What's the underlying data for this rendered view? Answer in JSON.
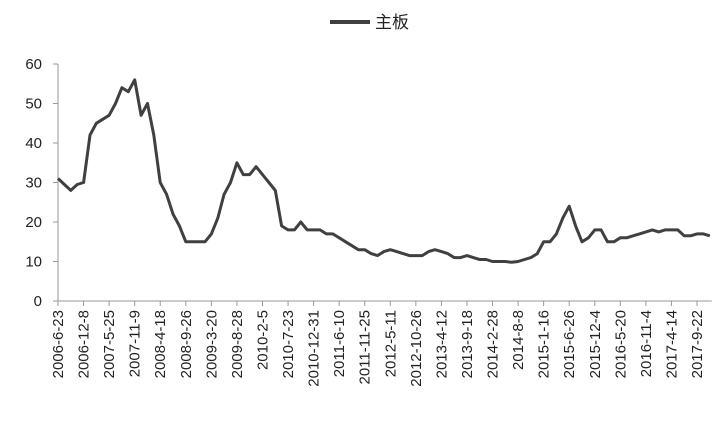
{
  "chart_data": {
    "type": "line",
    "categories": [
      "2006-6-23",
      null,
      null,
      null,
      "2006-12-8",
      null,
      null,
      null,
      "2007-5-25",
      null,
      null,
      null,
      "2007-11-9",
      null,
      null,
      null,
      "2008-4-18",
      null,
      null,
      null,
      "2008-9-26",
      null,
      null,
      null,
      "2009-3-20",
      null,
      null,
      null,
      "2009-8-28",
      null,
      null,
      null,
      "2010-2-5",
      null,
      null,
      null,
      "2010-7-23",
      null,
      null,
      null,
      "2010-12-31",
      null,
      null,
      null,
      "2011-6-10",
      null,
      null,
      null,
      "2011-11-25",
      null,
      null,
      null,
      "2012-5-11",
      null,
      null,
      null,
      "2012-10-26",
      null,
      null,
      null,
      "2013-4-12",
      null,
      null,
      null,
      "2013-9-18",
      null,
      null,
      null,
      "2014-2-28",
      null,
      null,
      null,
      "2014-8-8",
      null,
      null,
      null,
      "2015-1-16",
      null,
      null,
      null,
      "2015-6-26",
      null,
      null,
      null,
      "2015-12-4",
      null,
      null,
      null,
      "2016-5-20",
      null,
      null,
      null,
      "2016-11-4",
      null,
      null,
      null,
      "2017-4-14",
      null,
      null,
      null,
      "2017-9-22",
      null,
      null
    ],
    "series": [
      {
        "name": "主板",
        "color": "#404040",
        "values": [
          31,
          29.5,
          28,
          29.5,
          30,
          42,
          45,
          46,
          47,
          50,
          54,
          53,
          56,
          47,
          50,
          42,
          30,
          27,
          22,
          19,
          15,
          15,
          15,
          15,
          17,
          21,
          27,
          30,
          35,
          32,
          32,
          34,
          32,
          30,
          28,
          19,
          18,
          18,
          20,
          18,
          18,
          18,
          17,
          17,
          16,
          15,
          14,
          13,
          13,
          12,
          11.5,
          12.5,
          13,
          12.5,
          12,
          11.5,
          11.5,
          11.5,
          12.5,
          13,
          12.5,
          12,
          11,
          11,
          11.5,
          11,
          10.5,
          10.5,
          10,
          10,
          10,
          9.8,
          10,
          10.5,
          11,
          12,
          15,
          15,
          17,
          21,
          24,
          19,
          15,
          16,
          18,
          18,
          15,
          15,
          16,
          16,
          16.5,
          17,
          17.5,
          18,
          17.5,
          18,
          18,
          18,
          16.5,
          16.5,
          17,
          17,
          16.5
        ]
      }
    ],
    "ylim": [
      0,
      60
    ],
    "yticks": [
      0,
      10,
      20,
      30,
      40,
      50,
      60
    ],
    "grid": false,
    "legend": "top"
  }
}
